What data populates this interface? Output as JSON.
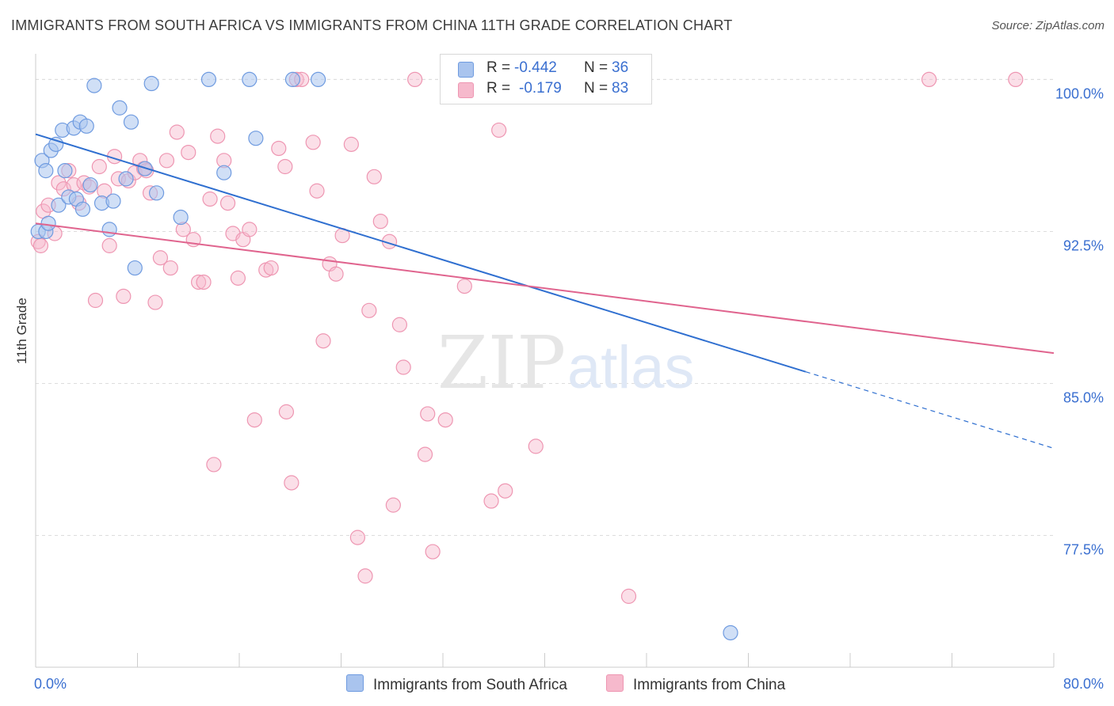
{
  "title": "IMMIGRANTS FROM SOUTH AFRICA VS IMMIGRANTS FROM CHINA 11TH GRADE CORRELATION CHART",
  "source": "Source: ZipAtlas.com",
  "watermark": {
    "zip": "ZIP",
    "atlas": "atlas"
  },
  "legend": {
    "rows": [
      {
        "r_label": "R =",
        "r_value": "-0.442",
        "n_label": "N =",
        "n_value": "36"
      },
      {
        "r_label": "R =",
        "r_value": "-0.179",
        "n_label": "N =",
        "n_value": "83"
      }
    ]
  },
  "colors": {
    "series1_fill": "#a9c4ee",
    "series1_stroke": "#6f9be0",
    "series1_line": "#2f6fd0",
    "series2_fill": "#f6b9cc",
    "series2_stroke": "#ee96b2",
    "series2_line": "#e0648e",
    "grid": "#dddddd",
    "tick_label": "#3a6fd0"
  },
  "chart_data": {
    "type": "scatter",
    "xlabel": "",
    "ylabel": "11th Grade",
    "xlim": [
      0,
      80
    ],
    "ylim": [
      71,
      101.5
    ],
    "x_tick_labels": [
      "0.0%",
      "80.0%"
    ],
    "y_ticks": [
      100,
      92.5,
      85,
      77.5
    ],
    "y_tick_labels": [
      "100.0%",
      "92.5%",
      "85.0%",
      "77.5%"
    ],
    "grid": true,
    "legend_position": "bottom",
    "series": [
      {
        "name": "Immigrants from South Africa",
        "r": -0.442,
        "n": 36,
        "trend": {
          "x_start": 0,
          "y_start": 97.3,
          "x_solid_end": 60.5,
          "x_end": 80,
          "y_end": 81.8
        },
        "points": [
          [
            0.2,
            92.5
          ],
          [
            0.5,
            96.0
          ],
          [
            0.8,
            95.5
          ],
          [
            1.2,
            96.5
          ],
          [
            1.6,
            96.8
          ],
          [
            1.8,
            93.8
          ],
          [
            2.1,
            97.5
          ],
          [
            2.3,
            95.5
          ],
          [
            2.6,
            94.2
          ],
          [
            3.0,
            97.6
          ],
          [
            3.2,
            94.1
          ],
          [
            3.5,
            97.9
          ],
          [
            3.7,
            93.6
          ],
          [
            4.0,
            97.7
          ],
          [
            4.3,
            94.8
          ],
          [
            4.6,
            99.7
          ],
          [
            5.2,
            93.9
          ],
          [
            5.8,
            92.6
          ],
          [
            6.1,
            94.0
          ],
          [
            6.6,
            98.6
          ],
          [
            7.1,
            95.1
          ],
          [
            7.5,
            97.9
          ],
          [
            7.8,
            90.7
          ],
          [
            8.6,
            95.6
          ],
          [
            9.1,
            99.8
          ],
          [
            9.5,
            94.4
          ],
          [
            11.4,
            93.2
          ],
          [
            13.6,
            100.0
          ],
          [
            14.8,
            95.4
          ],
          [
            16.8,
            100.0
          ],
          [
            17.3,
            97.1
          ],
          [
            20.2,
            100.0
          ],
          [
            22.2,
            100.0
          ],
          [
            54.6,
            72.7
          ],
          [
            0.8,
            92.5
          ],
          [
            1.0,
            92.9
          ]
        ]
      },
      {
        "name": "Immigrants from China",
        "r": -0.179,
        "n": 83,
        "trend": {
          "x_start": 0,
          "y_start": 92.9,
          "x_end": 80,
          "y_end": 86.5
        },
        "points": [
          [
            0.2,
            92.0
          ],
          [
            0.6,
            93.5
          ],
          [
            1.0,
            93.8
          ],
          [
            1.5,
            92.4
          ],
          [
            1.8,
            94.9
          ],
          [
            2.2,
            94.6
          ],
          [
            2.6,
            95.5
          ],
          [
            3.0,
            94.8
          ],
          [
            3.4,
            93.9
          ],
          [
            3.8,
            94.9
          ],
          [
            4.2,
            94.7
          ],
          [
            4.7,
            89.1
          ],
          [
            5.0,
            95.7
          ],
          [
            5.4,
            94.5
          ],
          [
            5.8,
            91.8
          ],
          [
            6.2,
            96.2
          ],
          [
            6.5,
            95.1
          ],
          [
            6.9,
            89.3
          ],
          [
            7.3,
            95.0
          ],
          [
            7.8,
            95.4
          ],
          [
            8.2,
            96.0
          ],
          [
            8.5,
            95.6
          ],
          [
            8.7,
            95.5
          ],
          [
            9.0,
            94.4
          ],
          [
            9.4,
            89.0
          ],
          [
            9.8,
            91.2
          ],
          [
            10.3,
            96.0
          ],
          [
            10.6,
            90.7
          ],
          [
            11.1,
            97.4
          ],
          [
            11.6,
            92.6
          ],
          [
            12.0,
            96.4
          ],
          [
            12.4,
            92.1
          ],
          [
            12.8,
            90.0
          ],
          [
            13.2,
            90.0
          ],
          [
            13.7,
            94.1
          ],
          [
            14.3,
            97.2
          ],
          [
            14.8,
            96.0
          ],
          [
            15.1,
            93.9
          ],
          [
            15.5,
            92.4
          ],
          [
            15.9,
            90.2
          ],
          [
            16.3,
            92.1
          ],
          [
            16.8,
            92.6
          ],
          [
            18.1,
            90.6
          ],
          [
            18.5,
            90.7
          ],
          [
            19.1,
            96.6
          ],
          [
            19.6,
            95.7
          ],
          [
            19.7,
            83.6
          ],
          [
            20.1,
            80.1
          ],
          [
            20.5,
            100.0
          ],
          [
            20.9,
            100.0
          ],
          [
            21.8,
            96.9
          ],
          [
            22.1,
            94.5
          ],
          [
            22.6,
            87.1
          ],
          [
            23.1,
            90.9
          ],
          [
            23.6,
            90.4
          ],
          [
            24.1,
            92.3
          ],
          [
            24.8,
            96.8
          ],
          [
            25.3,
            77.4
          ],
          [
            25.9,
            75.5
          ],
          [
            26.2,
            88.6
          ],
          [
            26.6,
            95.2
          ],
          [
            27.1,
            93.0
          ],
          [
            27.8,
            92.0
          ],
          [
            28.1,
            79.0
          ],
          [
            28.6,
            87.9
          ],
          [
            28.9,
            85.8
          ],
          [
            29.8,
            100.0
          ],
          [
            30.6,
            81.5
          ],
          [
            30.8,
            83.5
          ],
          [
            31.2,
            76.7
          ],
          [
            32.2,
            83.2
          ],
          [
            33.7,
            89.8
          ],
          [
            35.3,
            100.0
          ],
          [
            35.8,
            79.2
          ],
          [
            36.4,
            97.5
          ],
          [
            36.9,
            79.7
          ],
          [
            39.3,
            81.9
          ],
          [
            14.0,
            81.0
          ],
          [
            17.2,
            83.2
          ],
          [
            46.6,
            74.5
          ],
          [
            70.2,
            100.0
          ],
          [
            77.0,
            100.0
          ],
          [
            0.4,
            91.8
          ]
        ]
      }
    ]
  }
}
